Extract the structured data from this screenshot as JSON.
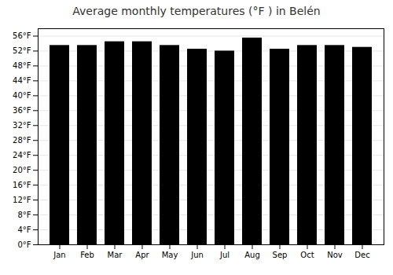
{
  "chart_data": {
    "type": "bar",
    "title": "Average monthly temperatures (°F ) in Belén",
    "categories": [
      "Jan",
      "Feb",
      "Mar",
      "Apr",
      "May",
      "Jun",
      "Jul",
      "Aug",
      "Sep",
      "Oct",
      "Nov",
      "Dec"
    ],
    "values": [
      53.5,
      53.5,
      54.5,
      54.5,
      53.5,
      52.5,
      52.0,
      55.5,
      52.5,
      53.5,
      53.5,
      53.0
    ],
    "ylim": [
      0,
      58
    ],
    "yticks": [
      {
        "value": 0,
        "label": "0°F"
      },
      {
        "value": 4,
        "label": "4°F"
      },
      {
        "value": 8,
        "label": "8°F"
      },
      {
        "value": 12,
        "label": "12°F"
      },
      {
        "value": 16,
        "label": "16°F"
      },
      {
        "value": 20,
        "label": "20°F"
      },
      {
        "value": 24,
        "label": "24°F"
      },
      {
        "value": 28,
        "label": "28°F"
      },
      {
        "value": 32,
        "label": "32°F"
      },
      {
        "value": 36,
        "label": "36°F"
      },
      {
        "value": 40,
        "label": "40°F"
      },
      {
        "value": 44,
        "label": "44°F"
      },
      {
        "value": 48,
        "label": "48°F"
      },
      {
        "value": 52,
        "label": "52°F"
      },
      {
        "value": 56,
        "label": "56°F"
      }
    ],
    "grid": true
  }
}
